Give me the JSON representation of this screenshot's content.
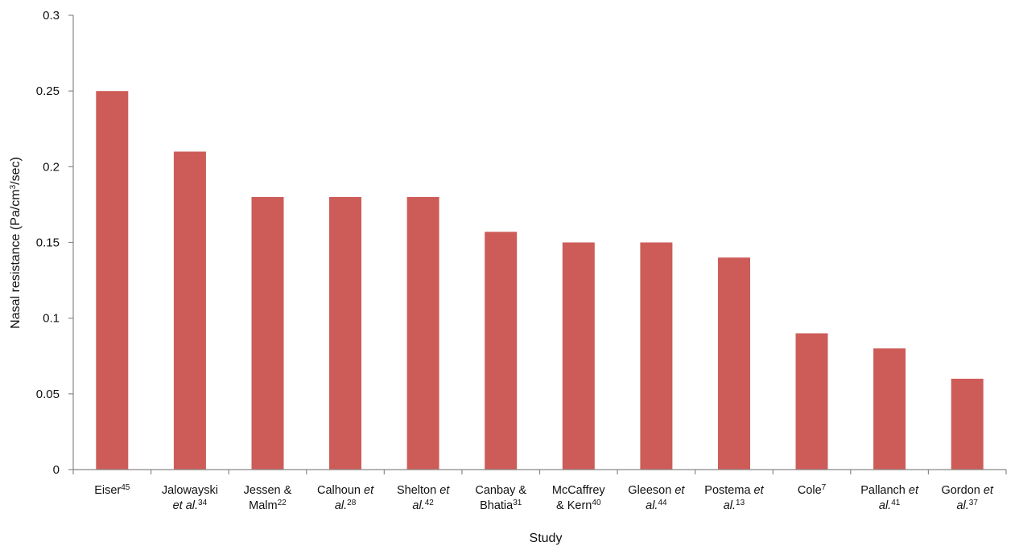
{
  "chart_data": {
    "type": "bar",
    "xlabel": "Study",
    "ylabel": "Nasal resistance (Pa/cm3/sec)",
    "ylabel_parts": {
      "pre": "Nasal resistance (Pa/cm",
      "sup": "3",
      "post": "/sec)"
    },
    "ylim": [
      0,
      0.3
    ],
    "yticks": [
      "0",
      "0.05",
      "0.1",
      "0.15",
      "0.2",
      "0.25",
      "0.3"
    ],
    "grid": false,
    "legend": "none",
    "bar_color": "#cd5c58",
    "categories": [
      {
        "lines": [
          [
            {
              "t": "Eiser"
            },
            {
              "t": "45",
              "sup": true
            }
          ]
        ]
      },
      {
        "lines": [
          [
            {
              "t": "Jalowayski"
            }
          ],
          [
            {
              "t": "et al.",
              "it": true
            },
            {
              "t": "34",
              "sup": true
            }
          ]
        ]
      },
      {
        "lines": [
          [
            {
              "t": "Jessen &"
            }
          ],
          [
            {
              "t": "Malm"
            },
            {
              "t": "22",
              "sup": true
            }
          ]
        ]
      },
      {
        "lines": [
          [
            {
              "t": "Calhoun "
            },
            {
              "t": "et",
              "it": true
            }
          ],
          [
            {
              "t": "al.",
              "it": true
            },
            {
              "t": "28",
              "sup": true
            }
          ]
        ]
      },
      {
        "lines": [
          [
            {
              "t": "Shelton "
            },
            {
              "t": "et",
              "it": true
            }
          ],
          [
            {
              "t": "al.",
              "it": true
            },
            {
              "t": "42",
              "sup": true
            }
          ]
        ]
      },
      {
        "lines": [
          [
            {
              "t": "Canbay &"
            }
          ],
          [
            {
              "t": "Bhatia"
            },
            {
              "t": "31",
              "sup": true
            }
          ]
        ]
      },
      {
        "lines": [
          [
            {
              "t": "McCaffrey"
            }
          ],
          [
            {
              "t": "& Kern"
            },
            {
              "t": "40",
              "sup": true
            }
          ]
        ]
      },
      {
        "lines": [
          [
            {
              "t": "Gleeson "
            },
            {
              "t": "et",
              "it": true
            }
          ],
          [
            {
              "t": "al.",
              "it": true
            },
            {
              "t": "44",
              "sup": true
            }
          ]
        ]
      },
      {
        "lines": [
          [
            {
              "t": "Postema "
            },
            {
              "t": "et",
              "it": true
            }
          ],
          [
            {
              "t": "al.",
              "it": true
            },
            {
              "t": "13",
              "sup": true
            }
          ]
        ]
      },
      {
        "lines": [
          [
            {
              "t": "Cole"
            },
            {
              "t": "7",
              "sup": true
            }
          ]
        ]
      },
      {
        "lines": [
          [
            {
              "t": "Pallanch "
            },
            {
              "t": "et",
              "it": true
            }
          ],
          [
            {
              "t": "al.",
              "it": true
            },
            {
              "t": "41",
              "sup": true
            }
          ]
        ]
      },
      {
        "lines": [
          [
            {
              "t": "Gordon "
            },
            {
              "t": "et",
              "it": true
            }
          ],
          [
            {
              "t": "al.",
              "it": true
            },
            {
              "t": "37",
              "sup": true
            }
          ]
        ]
      }
    ],
    "values": [
      0.25,
      0.21,
      0.18,
      0.18,
      0.18,
      0.157,
      0.15,
      0.15,
      0.14,
      0.09,
      0.08,
      0.06
    ]
  }
}
